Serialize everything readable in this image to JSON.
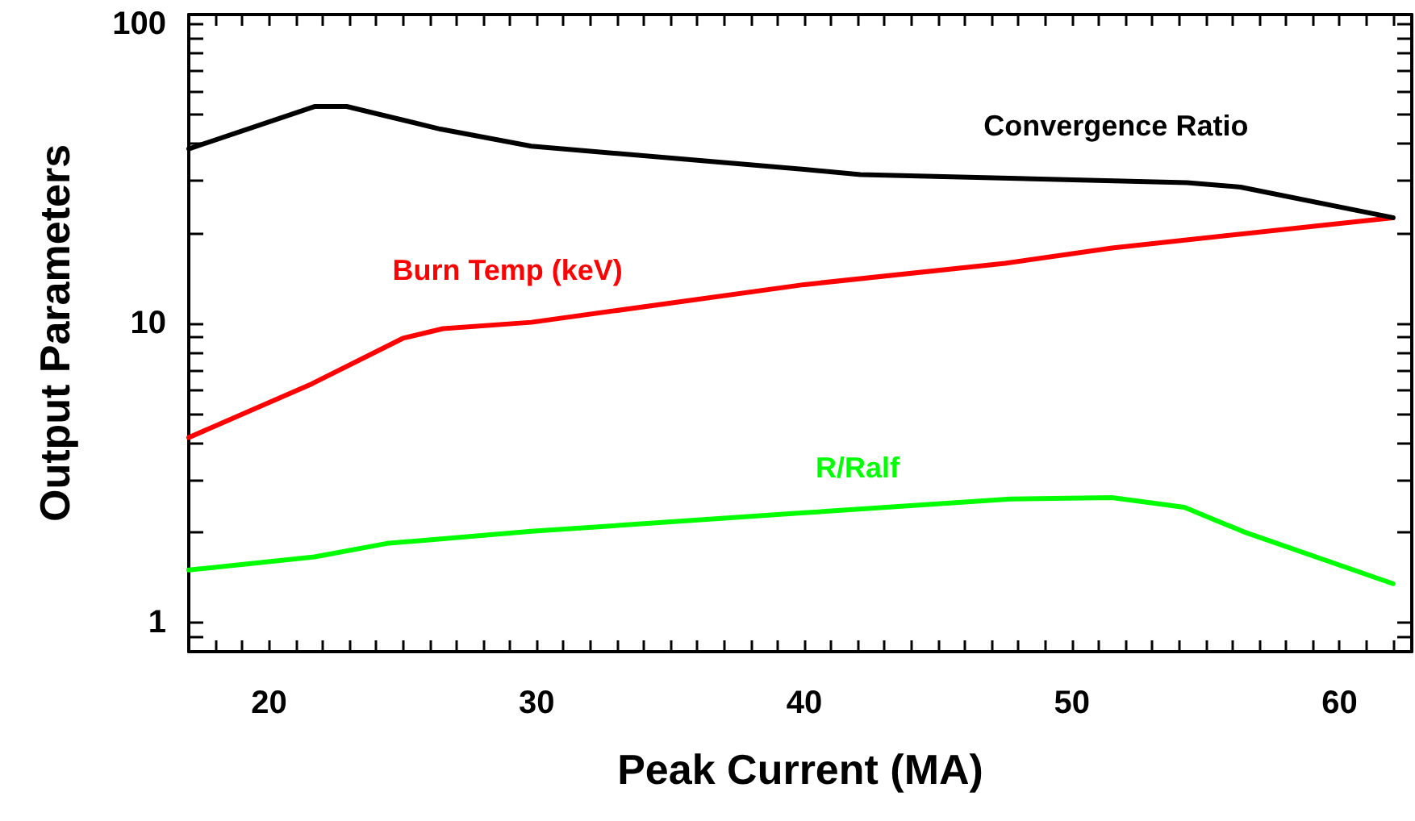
{
  "chart_data": {
    "type": "line",
    "xlabel": "Peak Current (MA)",
    "ylabel": "Output Parameters",
    "log": "y",
    "grid": false,
    "legend": false,
    "marker": "none",
    "line_style": "solid",
    "xlim": [
      17,
      62.7
    ],
    "ylim": [
      0.8,
      108
    ],
    "xticks": [
      {
        "value": 17,
        "label": null
      },
      {
        "value": 18,
        "label": null
      },
      {
        "value": 19,
        "label": null
      },
      20,
      {
        "value": 21,
        "label": null
      },
      {
        "value": 22,
        "label": null
      },
      {
        "value": 23,
        "label": null
      },
      {
        "value": 24,
        "label": null
      },
      {
        "value": 25,
        "label": null
      },
      {
        "value": 26,
        "label": null
      },
      {
        "value": 27,
        "label": null
      },
      {
        "value": 28,
        "label": null
      },
      {
        "value": 29,
        "label": null
      },
      30,
      {
        "value": 31,
        "label": null
      },
      {
        "value": 32,
        "label": null
      },
      {
        "value": 33,
        "label": null
      },
      {
        "value": 34,
        "label": null
      },
      {
        "value": 35,
        "label": null
      },
      {
        "value": 36,
        "label": null
      },
      {
        "value": 37,
        "label": null
      },
      {
        "value": 38,
        "label": null
      },
      {
        "value": 39,
        "label": null
      },
      40,
      {
        "value": 41,
        "label": null
      },
      {
        "value": 42,
        "label": null
      },
      {
        "value": 43,
        "label": null
      },
      {
        "value": 44,
        "label": null
      },
      {
        "value": 45,
        "label": null
      },
      {
        "value": 46,
        "label": null
      },
      {
        "value": 47,
        "label": null
      },
      {
        "value": 48,
        "label": null
      },
      {
        "value": 49,
        "label": null
      },
      50,
      {
        "value": 51,
        "label": null
      },
      {
        "value": 52,
        "label": null
      },
      {
        "value": 53,
        "label": null
      },
      {
        "value": 54,
        "label": null
      },
      {
        "value": 55,
        "label": null
      },
      {
        "value": 56,
        "label": null
      },
      {
        "value": 57,
        "label": null
      },
      {
        "value": 58,
        "label": null
      },
      {
        "value": 59,
        "label": null
      },
      60,
      {
        "value": 61,
        "label": null
      },
      {
        "value": 62,
        "label": null
      }
    ],
    "yticks": [
      {
        "value": 0.9,
        "label": null
      },
      1,
      {
        "value": 2,
        "label": null
      },
      {
        "value": 3,
        "label": null
      },
      {
        "value": 4,
        "label": null
      },
      {
        "value": 5,
        "label": null
      },
      {
        "value": 6,
        "label": null
      },
      {
        "value": 7,
        "label": null
      },
      {
        "value": 8,
        "label": null
      },
      {
        "value": 9,
        "label": null
      },
      10,
      {
        "value": 20,
        "label": null
      },
      {
        "value": 30,
        "label": null
      },
      {
        "value": 40,
        "label": null
      },
      {
        "value": 50,
        "label": null
      },
      {
        "value": 60,
        "label": null
      },
      {
        "value": 70,
        "label": null
      },
      {
        "value": 80,
        "label": null
      },
      {
        "value": 90,
        "label": null
      },
      100
    ],
    "series": [
      {
        "name": "Convergence Ratio",
        "color": "#000000",
        "x": [
          17.0,
          21.7,
          22.9,
          26.4,
          29.8,
          40.0,
          42.1,
          54.3,
          56.3,
          62.0
        ],
        "values": [
          38.4,
          53.2,
          53.2,
          44.7,
          39.2,
          32.8,
          31.5,
          29.6,
          28.6,
          22.6
        ]
      },
      {
        "name": "Burn Temp (keV)",
        "color": "#ff0000",
        "x": [
          17.0,
          21.6,
          25.0,
          26.5,
          29.8,
          40.0,
          47.5,
          51.5,
          62.0
        ],
        "values": [
          4.16,
          6.29,
          8.93,
          9.62,
          10.1,
          13.5,
          15.9,
          17.9,
          22.6
        ]
      },
      {
        "name": "R/Ralf",
        "color": "#00ff00",
        "x": [
          17.0,
          21.7,
          24.4,
          29.8,
          40.0,
          47.7,
          51.5,
          54.2,
          56.5,
          62.0
        ],
        "values": [
          1.5,
          1.66,
          1.84,
          2.02,
          2.33,
          2.59,
          2.62,
          2.43,
          2.0,
          1.35
        ]
      }
    ]
  }
}
